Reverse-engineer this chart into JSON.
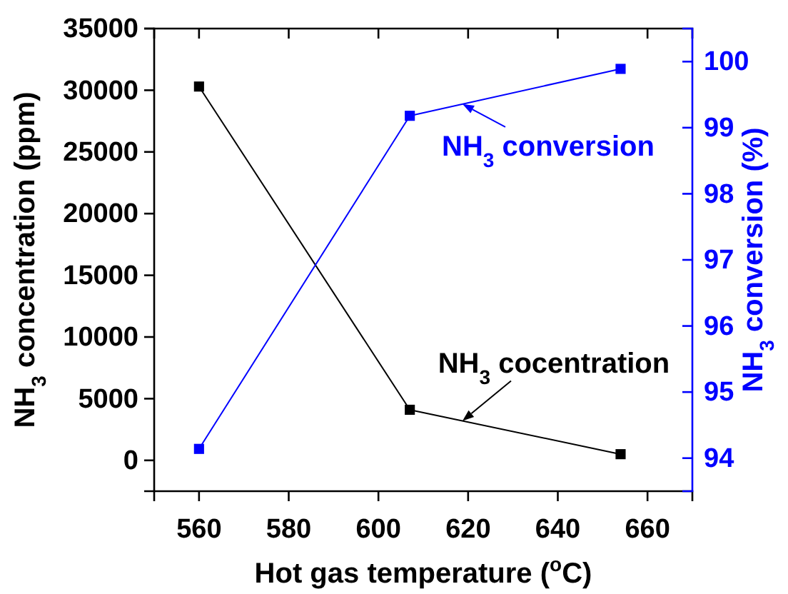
{
  "chart_data": {
    "type": "line",
    "xlabel": "Hot gas temperature ($^{o}$C)",
    "ylabel": "NH$_{3}$ concentration (ppm)",
    "y2label": "NH$_{3}$ conversion (%)",
    "x": [
      560,
      607,
      654
    ],
    "series": [
      {
        "name": "NH$_{3}$ cocentration",
        "color": "#000000",
        "values": [
          30300,
          4100,
          500
        ]
      },
      {
        "name": "NH$_{3}$ conversion",
        "color": "#0000ff",
        "values": [
          94.14,
          99.18,
          99.89
        ],
        "axis": "y2"
      }
    ],
    "marker": "square",
    "line_style": "solid",
    "grid": false,
    "legend": "right",
    "xlim": [
      550,
      670
    ],
    "xticks": [
      560,
      580,
      600,
      620,
      640,
      660
    ],
    "ylim": [
      -2500,
      35000
    ],
    "yticks": [
      0,
      5000,
      10000,
      15000,
      20000,
      25000,
      30000,
      35000
    ],
    "y2lim": [
      93.5,
      100.5
    ],
    "y2ticks": [
      94,
      95,
      96,
      97,
      98,
      99,
      100
    ]
  }
}
